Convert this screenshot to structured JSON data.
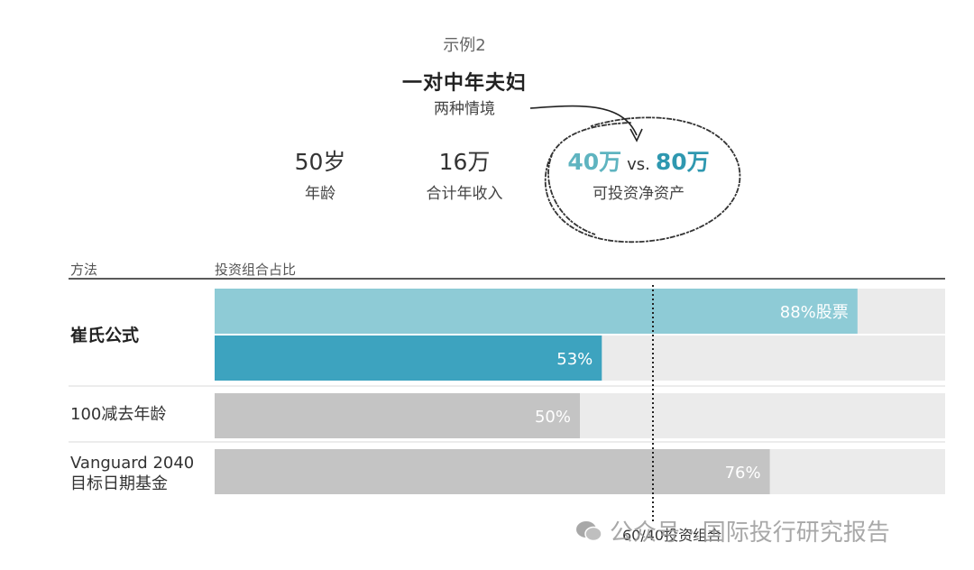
{
  "example_label": "示例2",
  "couple": {
    "title": "一对中年夫妇",
    "subtitle": "两种情境"
  },
  "stats": {
    "age": {
      "value": "50岁",
      "label": "年龄"
    },
    "income": {
      "value": "16万",
      "label": "合计年收入"
    },
    "assets": {
      "value_a": "40万",
      "vs": "vs.",
      "value_b": "80万",
      "label": "可投资净资产"
    }
  },
  "colors": {
    "stock_light": "#8ecbd6",
    "stock_dark": "#3da3bf",
    "gray_bar": "#c4c4c4",
    "track": "#ebebeb",
    "axis_line": "#222222"
  },
  "chart_data": {
    "type": "bar",
    "orientation": "horizontal",
    "xlim": [
      0,
      100
    ],
    "column_headers": {
      "method": "方法",
      "portfolio": "投资组合占比"
    },
    "reference_line": {
      "value": 60,
      "label": "60/40投资组合"
    },
    "rows": [
      {
        "label": "崔氏公式",
        "bars": [
          {
            "value": 88,
            "label": "88%股票"
          },
          {
            "value": 53,
            "label": "53%"
          }
        ]
      },
      {
        "label": "100减去年龄",
        "bars": [
          {
            "value": 50,
            "label": "50%"
          }
        ]
      },
      {
        "label": "Vanguard 2040\n目标日期基金",
        "bars": [
          {
            "value": 76,
            "label": "76%"
          }
        ]
      }
    ]
  },
  "watermark": {
    "icon": "wechat-icon",
    "text": "公众号 · 国际投行研究报告"
  }
}
